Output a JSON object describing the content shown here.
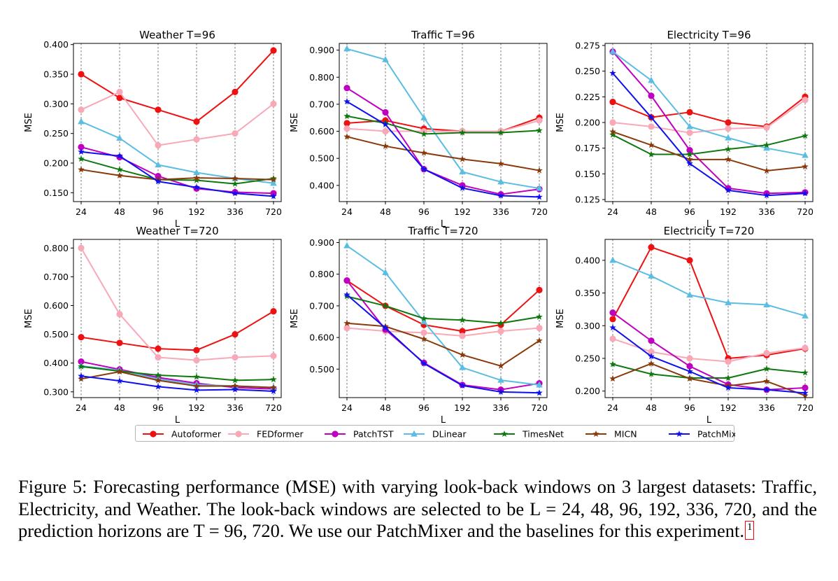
{
  "chart_data": [
    {
      "type": "line",
      "title": "Weather T=96",
      "xlabel": "L",
      "ylabel": "MSE",
      "x": [
        "24",
        "48",
        "96",
        "192",
        "336",
        "720"
      ],
      "ylim": [
        0.135,
        0.402
      ],
      "yticks": [
        0.15,
        0.2,
        0.25,
        0.3,
        0.35,
        0.4
      ],
      "ytick_labels": [
        "0.150",
        "0.200",
        "0.250",
        "0.300",
        "0.350",
        "0.400"
      ],
      "series": [
        {
          "name": "Autoformer",
          "values": [
            0.35,
            0.31,
            0.29,
            0.27,
            0.32,
            0.39
          ]
        },
        {
          "name": "FEDformer",
          "values": [
            0.29,
            0.32,
            0.23,
            0.24,
            0.25,
            0.3
          ]
        },
        {
          "name": "PatchTST",
          "values": [
            0.227,
            0.21,
            0.178,
            0.157,
            0.151,
            0.149
          ]
        },
        {
          "name": "DLinear",
          "values": [
            0.27,
            0.242,
            0.197,
            0.184,
            0.174,
            0.166
          ]
        },
        {
          "name": "TimesNet",
          "values": [
            0.207,
            0.189,
            0.172,
            0.171,
            0.165,
            0.174
          ]
        },
        {
          "name": "MICN",
          "values": [
            0.189,
            0.179,
            0.172,
            0.175,
            0.174,
            0.172
          ]
        },
        {
          "name": "PatchMixer",
          "values": [
            0.219,
            0.212,
            0.169,
            0.159,
            0.149,
            0.144
          ]
        }
      ]
    },
    {
      "type": "line",
      "title": "Traffic T=96",
      "xlabel": "L",
      "ylabel": "MSE",
      "x": [
        "24",
        "48",
        "96",
        "192",
        "336",
        "720"
      ],
      "ylim": [
        0.34,
        0.925
      ],
      "yticks": [
        0.4,
        0.5,
        0.6,
        0.7,
        0.8,
        0.9
      ],
      "ytick_labels": [
        "0.400",
        "0.500",
        "0.600",
        "0.700",
        "0.800",
        "0.900"
      ],
      "series": [
        {
          "name": "Autoformer",
          "values": [
            0.63,
            0.64,
            0.61,
            0.6,
            0.6,
            0.65
          ]
        },
        {
          "name": "FEDformer",
          "values": [
            0.61,
            0.6,
            0.6,
            0.6,
            0.6,
            0.64
          ]
        },
        {
          "name": "PatchTST",
          "values": [
            0.76,
            0.67,
            0.46,
            0.4,
            0.367,
            0.386
          ]
        },
        {
          "name": "DLinear",
          "values": [
            0.905,
            0.865,
            0.65,
            0.45,
            0.413,
            0.389
          ]
        },
        {
          "name": "TimesNet",
          "values": [
            0.656,
            0.63,
            0.59,
            0.595,
            0.595,
            0.603
          ]
        },
        {
          "name": "MICN",
          "values": [
            0.58,
            0.545,
            0.52,
            0.497,
            0.48,
            0.455
          ]
        },
        {
          "name": "PatchMixer",
          "values": [
            0.71,
            0.625,
            0.46,
            0.39,
            0.362,
            0.357
          ]
        }
      ]
    },
    {
      "type": "line",
      "title": "Electricity T=96",
      "xlabel": "L",
      "ylabel": "MSE",
      "x": [
        "24",
        "48",
        "96",
        "192",
        "336",
        "720"
      ],
      "ylim": [
        0.123,
        0.277
      ],
      "yticks": [
        0.125,
        0.15,
        0.175,
        0.2,
        0.225,
        0.25,
        0.275
      ],
      "ytick_labels": [
        "0.125",
        "0.150",
        "0.175",
        "0.200",
        "0.225",
        "0.250",
        "0.275"
      ],
      "series": [
        {
          "name": "Autoformer",
          "values": [
            0.22,
            0.205,
            0.21,
            0.2,
            0.196,
            0.225
          ]
        },
        {
          "name": "FEDformer",
          "values": [
            0.2,
            0.196,
            0.19,
            0.194,
            0.195,
            0.222
          ]
        },
        {
          "name": "PatchTST",
          "values": [
            0.269,
            0.226,
            0.173,
            0.136,
            0.131,
            0.132
          ]
        },
        {
          "name": "DLinear",
          "values": [
            0.269,
            0.241,
            0.196,
            0.185,
            0.175,
            0.168
          ]
        },
        {
          "name": "TimesNet",
          "values": [
            0.188,
            0.169,
            0.169,
            0.174,
            0.178,
            0.187
          ]
        },
        {
          "name": "MICN",
          "values": [
            0.191,
            0.178,
            0.164,
            0.164,
            0.153,
            0.157
          ]
        },
        {
          "name": "PatchMixer",
          "values": [
            0.248,
            0.205,
            0.16,
            0.134,
            0.129,
            0.131
          ]
        }
      ]
    },
    {
      "type": "line",
      "title": "Weather T=720",
      "xlabel": "L",
      "ylabel": "MSE",
      "x": [
        "24",
        "48",
        "96",
        "192",
        "336",
        "720"
      ],
      "ylim": [
        0.28,
        0.83
      ],
      "yticks": [
        0.3,
        0.4,
        0.5,
        0.6,
        0.7,
        0.8
      ],
      "ytick_labels": [
        "0.300",
        "0.400",
        "0.500",
        "0.600",
        "0.700",
        "0.800"
      ],
      "series": [
        {
          "name": "Autoformer",
          "values": [
            0.49,
            0.47,
            0.45,
            0.445,
            0.5,
            0.58
          ]
        },
        {
          "name": "FEDformer",
          "values": [
            0.8,
            0.57,
            0.42,
            0.41,
            0.42,
            0.425
          ]
        },
        {
          "name": "PatchTST",
          "values": [
            0.405,
            0.378,
            0.35,
            0.33,
            0.315,
            0.31
          ]
        },
        {
          "name": "DLinear",
          "values": [
            0.39,
            0.375,
            0.345,
            0.325,
            0.32,
            0.315
          ]
        },
        {
          "name": "TimesNet",
          "values": [
            0.388,
            0.372,
            0.358,
            0.352,
            0.34,
            0.343
          ]
        },
        {
          "name": "MICN",
          "values": [
            0.345,
            0.37,
            0.34,
            0.32,
            0.32,
            0.315
          ]
        },
        {
          "name": "PatchMixer",
          "values": [
            0.355,
            0.338,
            0.318,
            0.306,
            0.308,
            0.302
          ]
        }
      ]
    },
    {
      "type": "line",
      "title": "Traffic T=720",
      "xlabel": "L",
      "ylabel": "MSE",
      "x": [
        "24",
        "48",
        "96",
        "192",
        "336",
        "720"
      ],
      "ylim": [
        0.41,
        0.91
      ],
      "yticks": [
        0.5,
        0.6,
        0.7,
        0.8,
        0.9
      ],
      "ytick_labels": [
        "0.500",
        "0.600",
        "0.700",
        "0.800",
        "0.900"
      ],
      "series": [
        {
          "name": "Autoformer",
          "values": [
            0.78,
            0.7,
            0.64,
            0.62,
            0.64,
            0.75
          ]
        },
        {
          "name": "FEDformer",
          "values": [
            0.63,
            0.62,
            0.615,
            0.605,
            0.62,
            0.63
          ]
        },
        {
          "name": "PatchTST",
          "values": [
            0.78,
            0.625,
            0.52,
            0.45,
            0.435,
            0.455
          ]
        },
        {
          "name": "DLinear",
          "values": [
            0.89,
            0.805,
            0.65,
            0.505,
            0.465,
            0.45
          ]
        },
        {
          "name": "TimesNet",
          "values": [
            0.73,
            0.7,
            0.66,
            0.655,
            0.645,
            0.665
          ]
        },
        {
          "name": "MICN",
          "values": [
            0.645,
            0.635,
            0.595,
            0.545,
            0.51,
            0.59
          ]
        },
        {
          "name": "PatchMixer",
          "values": [
            0.735,
            0.63,
            0.518,
            0.448,
            0.428,
            0.425
          ]
        }
      ]
    },
    {
      "type": "line",
      "title": "Electricity T=720",
      "xlabel": "L",
      "ylabel": "MSE",
      "x": [
        "24",
        "48",
        "96",
        "192",
        "336",
        "720"
      ],
      "ylim": [
        0.19,
        0.432
      ],
      "yticks": [
        0.2,
        0.25,
        0.3,
        0.35,
        0.4
      ],
      "ytick_labels": [
        "0.200",
        "0.250",
        "0.300",
        "0.350",
        "0.400"
      ],
      "series": [
        {
          "name": "Autoformer",
          "values": [
            0.31,
            0.42,
            0.4,
            0.25,
            0.255,
            0.265
          ]
        },
        {
          "name": "FEDformer",
          "values": [
            0.28,
            0.26,
            0.25,
            0.245,
            0.258,
            0.266
          ]
        },
        {
          "name": "PatchTST",
          "values": [
            0.32,
            0.277,
            0.238,
            0.21,
            0.202,
            0.205
          ]
        },
        {
          "name": "DLinear",
          "values": [
            0.4,
            0.376,
            0.347,
            0.335,
            0.332,
            0.315
          ]
        },
        {
          "name": "TimesNet",
          "values": [
            0.241,
            0.226,
            0.22,
            0.22,
            0.234,
            0.228
          ]
        },
        {
          "name": "MICN",
          "values": [
            0.219,
            0.242,
            0.219,
            0.208,
            0.215,
            0.193
          ]
        },
        {
          "name": "PatchMixer",
          "values": [
            0.297,
            0.253,
            0.23,
            0.205,
            0.202,
            0.197
          ]
        }
      ]
    }
  ],
  "legend": {
    "items": [
      {
        "name": "Autoformer",
        "color": "#ee1111",
        "marker": "circle"
      },
      {
        "name": "FEDformer",
        "color": "#f9a8b7",
        "marker": "circle"
      },
      {
        "name": "PatchTST",
        "color": "#c000c0",
        "marker": "circle"
      },
      {
        "name": "DLinear",
        "color": "#5bbde2",
        "marker": "triangle"
      },
      {
        "name": "TimesNet",
        "color": "#0f780f",
        "marker": "star"
      },
      {
        "name": "MICN",
        "color": "#8a3a0a",
        "marker": "star"
      },
      {
        "name": "PatchMixer",
        "color": "#1010ee",
        "marker": "star"
      }
    ]
  },
  "caption": {
    "prefix": "Figure 5:",
    "text": "Forecasting performance (MSE) with varying look-back windows on 3 largest datasets: Traffic, Electricity, and Weather. The look-back windows are selected to be L = 24, 48, 96, 192, 336, 720, and the prediction horizons are T = 96, 720. We use our PatchMixer and the baselines for this experiment.",
    "footnote": "1"
  }
}
